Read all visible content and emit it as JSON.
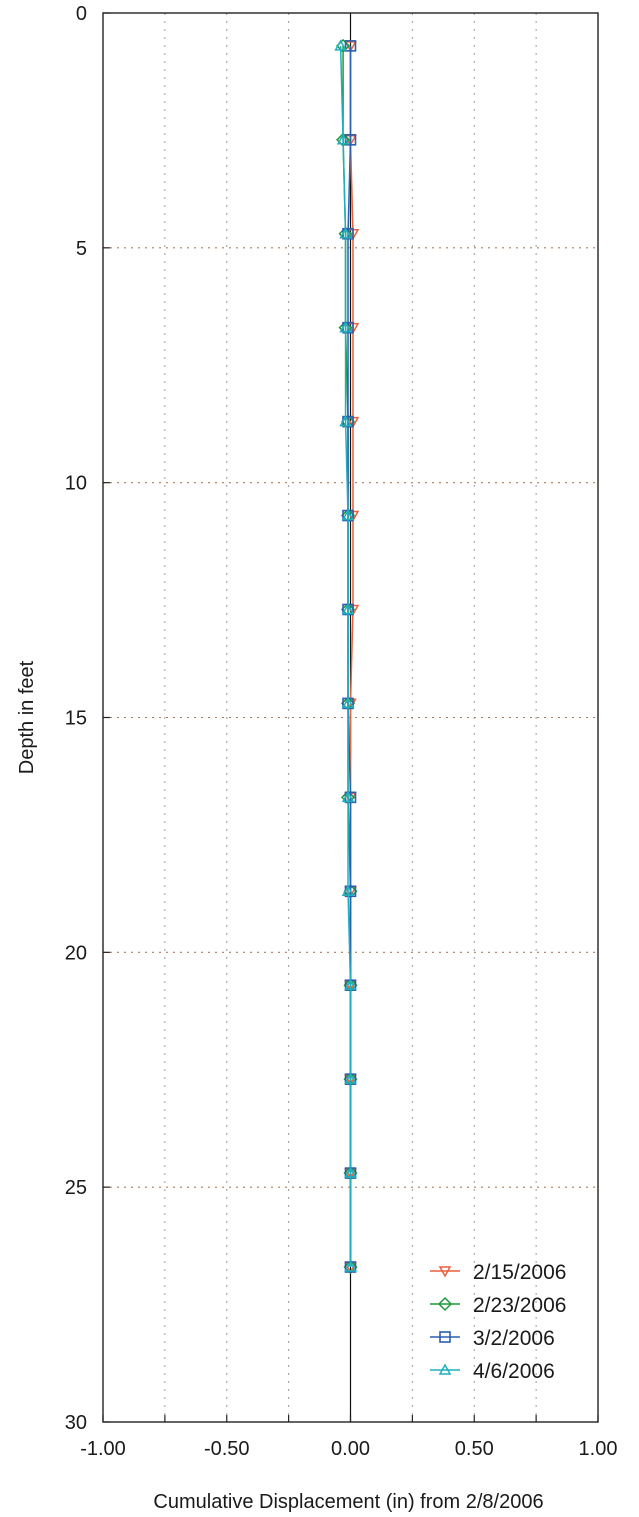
{
  "chart_data": {
    "type": "line",
    "xlabel": "Cumulative Displacement (in) from 2/8/2006",
    "ylabel": "Depth in feet",
    "xlim": [
      -1.0,
      1.0
    ],
    "ylim": [
      0,
      30
    ],
    "y_inverted": true,
    "x_ticks": [
      -1.0,
      -0.75,
      -0.5,
      -0.25,
      0.0,
      0.25,
      0.5,
      0.75,
      1.0
    ],
    "x_tick_labels": [
      {
        "value": -1.0,
        "label": "-1.00"
      },
      {
        "value": -0.5,
        "label": "-0.50"
      },
      {
        "value": 0.0,
        "label": "0.00"
      },
      {
        "value": 0.5,
        "label": "0.50"
      },
      {
        "value": 1.0,
        "label": "1.00"
      }
    ],
    "y_ticks": [
      {
        "value": 0,
        "label": "0"
      },
      {
        "value": 5,
        "label": "5"
      },
      {
        "value": 10,
        "label": "10"
      },
      {
        "value": 15,
        "label": "15"
      },
      {
        "value": 20,
        "label": "20"
      },
      {
        "value": 25,
        "label": "25"
      },
      {
        "value": 30,
        "label": "30"
      }
    ],
    "grid": true,
    "legend_position": "bottom-right",
    "zero_line": true,
    "series": [
      {
        "name": "2/15/2006",
        "color": "#e8603c",
        "marker": "triangle-down",
        "depth": [
          0.7,
          2.7,
          4.7,
          6.7,
          8.7,
          10.7,
          12.7,
          14.7,
          16.7,
          18.7,
          20.7,
          22.7,
          24.7,
          26.7
        ],
        "displacement": [
          0.0,
          0.0,
          0.01,
          0.01,
          0.01,
          0.01,
          0.01,
          0.0,
          0.0,
          0.0,
          0.0,
          0.0,
          0.0,
          0.0
        ]
      },
      {
        "name": "2/23/2006",
        "color": "#1f9a3a",
        "marker": "diamond",
        "depth": [
          0.7,
          2.7,
          4.7,
          6.7,
          8.7,
          10.7,
          12.7,
          14.7,
          16.7,
          18.7,
          20.7,
          22.7,
          24.7,
          26.7
        ],
        "displacement": [
          -0.03,
          -0.03,
          -0.02,
          -0.02,
          -0.01,
          -0.01,
          -0.01,
          -0.01,
          -0.01,
          0.0,
          0.0,
          0.0,
          0.0,
          0.0
        ]
      },
      {
        "name": "3/2/2006",
        "color": "#2b5fb0",
        "marker": "square",
        "depth": [
          0.7,
          2.7,
          4.7,
          6.7,
          8.7,
          10.7,
          12.7,
          14.7,
          16.7,
          18.7,
          20.7,
          22.7,
          24.7,
          26.7
        ],
        "displacement": [
          0.0,
          0.0,
          -0.01,
          -0.01,
          -0.01,
          -0.01,
          -0.01,
          -0.01,
          0.0,
          0.0,
          0.0,
          0.0,
          0.0,
          0.0
        ]
      },
      {
        "name": "4/6/2006",
        "color": "#1fb0c0",
        "marker": "triangle-up",
        "depth": [
          0.7,
          2.7,
          4.7,
          6.7,
          8.7,
          10.7,
          12.7,
          14.7,
          16.7,
          18.7,
          20.7,
          22.7,
          24.7,
          26.7
        ],
        "displacement": [
          -0.04,
          -0.03,
          -0.02,
          -0.02,
          -0.02,
          -0.01,
          -0.01,
          -0.01,
          -0.01,
          -0.01,
          0.0,
          0.0,
          0.0,
          0.0
        ]
      }
    ]
  }
}
